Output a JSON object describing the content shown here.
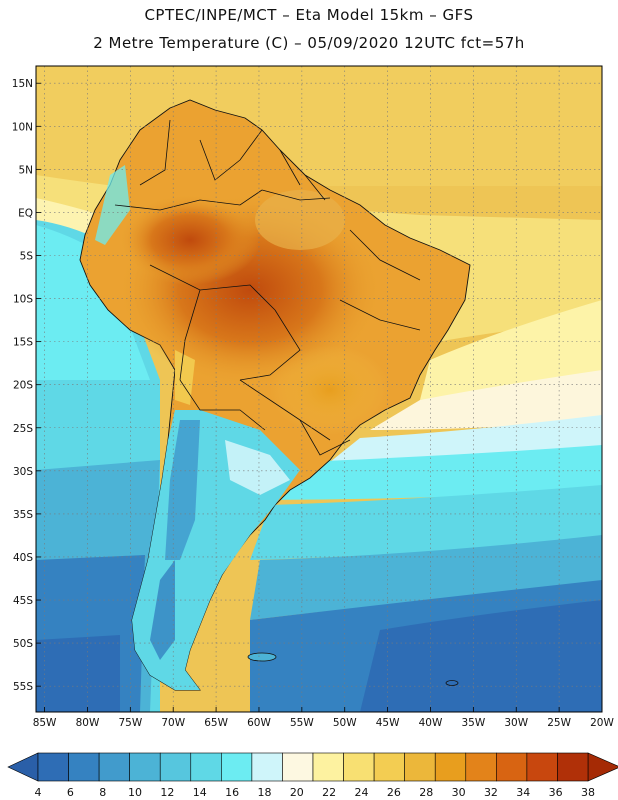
{
  "header": {
    "line1": "CPTEC/INPE/MCT –  Eta Model 15km – GFS",
    "line2": "2 Metre Temperature (C) – 05/09/2020 12UTC fct=57h"
  },
  "map": {
    "lat_labels": [
      "15N",
      "10N",
      "5N",
      "EQ",
      "5S",
      "10S",
      "15S",
      "20S",
      "25S",
      "30S",
      "35S",
      "40S",
      "45S",
      "50S",
      "55S"
    ],
    "lat_values": [
      15,
      10,
      5,
      0,
      -5,
      -10,
      -15,
      -20,
      -25,
      -30,
      -35,
      -40,
      -45,
      -50,
      -55
    ],
    "lon_labels": [
      "85W",
      "80W",
      "75W",
      "70W",
      "65W",
      "60W",
      "55W",
      "50W",
      "45W",
      "40W",
      "35W",
      "30W",
      "25W",
      "20W"
    ],
    "lon_values": [
      -85,
      -80,
      -75,
      -70,
      -65,
      -60,
      -55,
      -50,
      -45,
      -40,
      -35,
      -30,
      -25,
      -20
    ],
    "lat_range": [
      -58,
      17
    ],
    "lon_range": [
      -86,
      -20
    ],
    "ocean_color": "#eec555"
  },
  "colorbar": {
    "labels": [
      "4",
      "6",
      "8",
      "10",
      "12",
      "14",
      "16",
      "18",
      "20",
      "22",
      "24",
      "26",
      "28",
      "30",
      "32",
      "34",
      "36",
      "38"
    ],
    "colors": [
      "#2e6db5",
      "#3582c1",
      "#419bcc",
      "#4cb3d6",
      "#56c6de",
      "#5fd8e6",
      "#6cecf2",
      "#cff5fa",
      "#fdf8e1",
      "#fdf2a0",
      "#f8e072",
      "#f3cd52",
      "#ecb73a",
      "#e89e1e",
      "#e3831a",
      "#d86412",
      "#c8470e",
      "#b03008"
    ],
    "left_arrow_color": "#2a5fa8",
    "right_arrow_color": "#a52a05"
  }
}
